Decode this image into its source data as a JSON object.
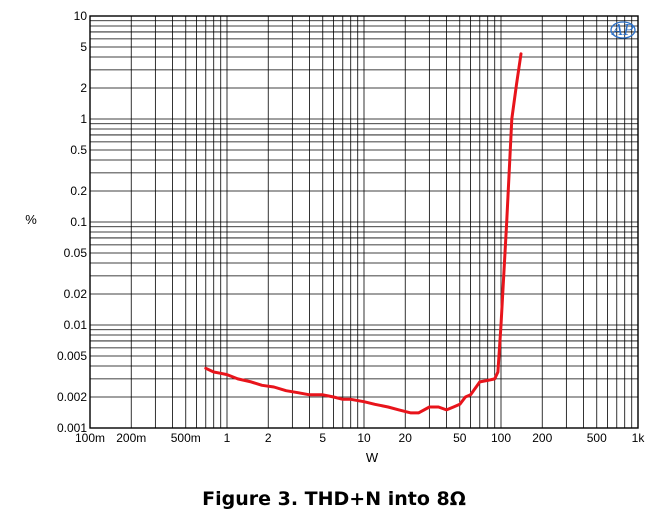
{
  "chart_data": {
    "type": "line",
    "title": "Figure 3. THD+N into 8Ω",
    "xlabel": "W",
    "ylabel": "%",
    "xscale": "log",
    "yscale": "log",
    "xlim": [
      0.1,
      1000
    ],
    "ylim": [
      0.001,
      10
    ],
    "grid": true,
    "x_ticks": [
      {
        "v": 0.1,
        "label": "100m"
      },
      {
        "v": 0.2,
        "label": "200m"
      },
      {
        "v": 0.5,
        "label": "500m"
      },
      {
        "v": 1,
        "label": "1"
      },
      {
        "v": 2,
        "label": "2"
      },
      {
        "v": 5,
        "label": "5"
      },
      {
        "v": 10,
        "label": "10"
      },
      {
        "v": 20,
        "label": "20"
      },
      {
        "v": 50,
        "label": "50"
      },
      {
        "v": 100,
        "label": "100"
      },
      {
        "v": 200,
        "label": "200"
      },
      {
        "v": 500,
        "label": "500"
      },
      {
        "v": 1000,
        "label": "1k"
      }
    ],
    "y_ticks": [
      {
        "v": 10,
        "label": "10"
      },
      {
        "v": 5,
        "label": "5"
      },
      {
        "v": 2,
        "label": "2"
      },
      {
        "v": 1,
        "label": "1"
      },
      {
        "v": 0.5,
        "label": "0.5"
      },
      {
        "v": 0.2,
        "label": "0.2"
      },
      {
        "v": 0.1,
        "label": "0.1"
      },
      {
        "v": 0.05,
        "label": "0.05"
      },
      {
        "v": 0.02,
        "label": "0.02"
      },
      {
        "v": 0.01,
        "label": "0.01"
      },
      {
        "v": 0.005,
        "label": "0.005"
      },
      {
        "v": 0.002,
        "label": "0.002"
      },
      {
        "v": 0.001,
        "label": "0.001"
      }
    ],
    "series": [
      {
        "color": "#e8141b",
        "x": [
          0.7,
          0.8,
          0.9,
          1.0,
          1.2,
          1.5,
          1.8,
          2.2,
          2.7,
          3.3,
          4.0,
          5.0,
          6.0,
          7.0,
          8.0,
          10,
          12,
          15,
          18,
          22,
          25,
          30,
          35,
          40,
          45,
          50,
          55,
          60,
          70,
          80,
          90,
          95,
          100,
          110,
          120,
          130,
          140
        ],
        "y": [
          0.0038,
          0.0035,
          0.0034,
          0.0033,
          0.003,
          0.0028,
          0.0026,
          0.0025,
          0.0023,
          0.0022,
          0.0021,
          0.0021,
          0.002,
          0.0019,
          0.0019,
          0.0018,
          0.0017,
          0.0016,
          0.0015,
          0.0014,
          0.0014,
          0.0016,
          0.0016,
          0.0015,
          0.0016,
          0.0017,
          0.002,
          0.0021,
          0.0028,
          0.0029,
          0.003,
          0.0035,
          0.01,
          0.1,
          1.0,
          2.2,
          4.3
        ]
      }
    ]
  },
  "logo": {
    "text": "AP"
  }
}
